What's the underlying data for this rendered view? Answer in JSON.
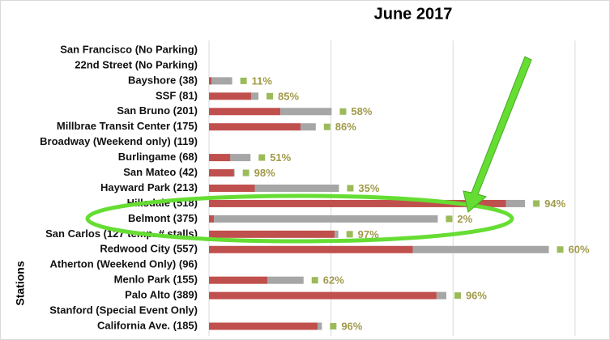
{
  "chart_data": {
    "type": "bar",
    "orientation": "horizontal",
    "stacked": true,
    "title": "June 2017",
    "y_label": "Stations",
    "categories": [
      "San Francisco (No Parking)",
      "22nd Street (No Parking)",
      "Bayshore (38)",
      "SSF (81)",
      "San Bruno (201)",
      "Millbrae Transit Center (175)",
      "Broadway (Weekend only) (119)",
      "Burlingame (68)",
      "San Mateo (42)",
      "Hayward Park (213)",
      "Hillsdale (518)",
      "Belmont (375)",
      "San Carlos (127 temp. # stalls)",
      "Redwood City (557)",
      "Atherton (Weekend Only) (96)",
      "Menlo Park (155)",
      "Palo Alto (389)",
      "Stanford (Special Event Only)",
      "California Ave. (185)"
    ],
    "series": [
      {
        "color": "#c0504d",
        "values": [
          null,
          null,
          4,
          69,
          117,
          150,
          null,
          35,
          41,
          75,
          487,
          8,
          206,
          334,
          null,
          96,
          373,
          null,
          178
        ]
      },
      {
        "color": "#a6a6a6",
        "values": [
          null,
          null,
          34,
          12,
          84,
          25,
          null,
          33,
          1,
          138,
          31,
          367,
          6,
          223,
          null,
          59,
          16,
          null,
          7
        ]
      }
    ],
    "utilization": {
      "color": "#9bbb59",
      "values": [
        null,
        null,
        11,
        85,
        58,
        86,
        null,
        51,
        98,
        35,
        94,
        2,
        97,
        60,
        null,
        62,
        96,
        null,
        96
      ],
      "value_labels": [
        null,
        null,
        "11%",
        "85%",
        "58%",
        "86%",
        null,
        "51%",
        "98%",
        "35%",
        "94%",
        "2%",
        "97%",
        "60%",
        null,
        "62%",
        "96%",
        null,
        "96%"
      ]
    },
    "xlim": [
      0,
      640
    ],
    "xticks": [
      0,
      200,
      400,
      600
    ],
    "grid": true
  }
}
